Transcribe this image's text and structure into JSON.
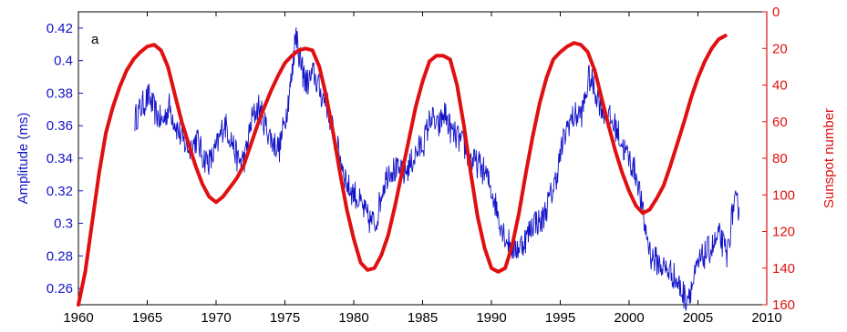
{
  "chart_data": {
    "type": "line",
    "panel_label": "a",
    "xlabel": "",
    "x_ticks": [
      1960,
      1965,
      1970,
      1975,
      1980,
      1985,
      1990,
      1995,
      2000,
      2005,
      2010
    ],
    "xlim": [
      1960,
      2010
    ],
    "left_axis": {
      "label": "Amplitude (ms)",
      "color": "#1414c8",
      "ylim": [
        0.25,
        0.43
      ],
      "ticks": [
        0.26,
        0.28,
        0.3,
        0.32,
        0.34,
        0.36,
        0.38,
        0.4,
        0.42
      ],
      "tick_labels": [
        "0.26",
        "0.28",
        "0.3",
        "0.32",
        "0.34",
        "0.36",
        "0.38",
        "0.4",
        "0.42"
      ]
    },
    "right_axis": {
      "label": "Sunspot number",
      "color": "#e01010",
      "ylim": [
        0,
        160
      ],
      "inverted": true,
      "ticks": [
        0,
        20,
        40,
        60,
        80,
        100,
        120,
        140,
        160
      ],
      "tick_labels": [
        "0",
        "20",
        "40",
        "60",
        "80",
        "100",
        "120",
        "140",
        "160"
      ]
    },
    "grid": false,
    "series": [
      {
        "axis": "left",
        "color": "#1414c8",
        "noisy": true,
        "x": [
          1964.1,
          1964.6,
          1965.1,
          1965.6,
          1966.1,
          1966.6,
          1967.1,
          1967.6,
          1968.1,
          1968.6,
          1969.1,
          1969.6,
          1970.1,
          1970.6,
          1971.1,
          1971.6,
          1972.1,
          1972.6,
          1973.1,
          1973.6,
          1974.1,
          1974.6,
          1975.1,
          1975.5,
          1975.8,
          1976.0,
          1976.3,
          1976.6,
          1977.1,
          1977.6,
          1978.1,
          1978.6,
          1979.1,
          1979.6,
          1980.1,
          1980.6,
          1981.1,
          1981.6,
          1982.1,
          1982.6,
          1983.1,
          1983.6,
          1984.1,
          1984.6,
          1985.1,
          1985.6,
          1986.1,
          1986.6,
          1987.1,
          1987.6,
          1988.1,
          1988.6,
          1989.1,
          1989.6,
          1990.1,
          1990.6,
          1991.1,
          1991.6,
          1992.1,
          1992.6,
          1993.1,
          1993.6,
          1994.1,
          1994.6,
          1995.1,
          1995.6,
          1996.1,
          1996.6,
          1997.1,
          1997.6,
          1998.1,
          1998.6,
          1999.1,
          1999.6,
          2000.1,
          2000.6,
          2001.1,
          2001.6,
          2002.1,
          2002.6,
          2003.1,
          2003.6,
          2004.1,
          2004.6,
          2005.1,
          2005.6,
          2006.1,
          2006.6,
          2007.1,
          2007.6,
          2008.0
        ],
        "y": [
          0.364,
          0.372,
          0.378,
          0.368,
          0.362,
          0.372,
          0.36,
          0.35,
          0.346,
          0.352,
          0.34,
          0.338,
          0.348,
          0.362,
          0.352,
          0.338,
          0.34,
          0.364,
          0.372,
          0.36,
          0.35,
          0.346,
          0.368,
          0.39,
          0.42,
          0.405,
          0.392,
          0.386,
          0.392,
          0.38,
          0.372,
          0.352,
          0.338,
          0.322,
          0.318,
          0.31,
          0.302,
          0.3,
          0.322,
          0.334,
          0.332,
          0.33,
          0.336,
          0.344,
          0.35,
          0.366,
          0.358,
          0.368,
          0.356,
          0.352,
          0.346,
          0.338,
          0.336,
          0.33,
          0.318,
          0.302,
          0.29,
          0.284,
          0.286,
          0.292,
          0.302,
          0.3,
          0.312,
          0.324,
          0.346,
          0.362,
          0.366,
          0.368,
          0.39,
          0.38,
          0.37,
          0.364,
          0.358,
          0.346,
          0.338,
          0.328,
          0.3,
          0.28,
          0.276,
          0.272,
          0.27,
          0.262,
          0.254,
          0.262,
          0.276,
          0.282,
          0.286,
          0.292,
          0.28,
          0.312,
          0.31
        ]
      },
      {
        "axis": "right",
        "color": "#e01010",
        "x": [
          1960.0,
          1960.5,
          1961.0,
          1961.5,
          1962.0,
          1962.5,
          1963.0,
          1963.5,
          1964.0,
          1964.5,
          1965.0,
          1965.5,
          1966.0,
          1966.5,
          1967.0,
          1967.5,
          1968.0,
          1968.5,
          1969.0,
          1969.5,
          1970.0,
          1970.5,
          1971.0,
          1971.5,
          1972.0,
          1972.5,
          1973.0,
          1973.5,
          1974.0,
          1974.5,
          1975.0,
          1975.5,
          1976.0,
          1976.5,
          1977.0,
          1977.5,
          1978.0,
          1978.5,
          1979.0,
          1979.5,
          1980.0,
          1980.5,
          1981.0,
          1981.5,
          1982.0,
          1982.5,
          1983.0,
          1983.5,
          1984.0,
          1984.5,
          1985.0,
          1985.5,
          1986.0,
          1986.5,
          1987.0,
          1987.5,
          1988.0,
          1988.5,
          1989.0,
          1989.5,
          1990.0,
          1990.5,
          1991.0,
          1991.5,
          1992.0,
          1992.5,
          1993.0,
          1993.5,
          1994.0,
          1994.5,
          1995.0,
          1995.5,
          1996.0,
          1996.5,
          1997.0,
          1997.5,
          1998.0,
          1998.5,
          1999.0,
          1999.5,
          2000.0,
          2000.5,
          2001.0,
          2001.5,
          2002.0,
          2002.5,
          2003.0,
          2003.5,
          2004.0,
          2004.5,
          2005.0,
          2005.5,
          2006.0,
          2006.5,
          2007.0
        ],
        "y": [
          160,
          142,
          115,
          88,
          66,
          52,
          41,
          32,
          26,
          22,
          19,
          18,
          21,
          30,
          45,
          60,
          72,
          84,
          94,
          101,
          104,
          101,
          96,
          91,
          84,
          73,
          62,
          52,
          43,
          35,
          28,
          24,
          21,
          20,
          21,
          30,
          46,
          66,
          88,
          108,
          124,
          137,
          141,
          140,
          133,
          122,
          106,
          88,
          70,
          52,
          38,
          27,
          24,
          24,
          26,
          40,
          62,
          88,
          112,
          129,
          140,
          142,
          140,
          128,
          110,
          88,
          68,
          50,
          36,
          26,
          22,
          19,
          17,
          18,
          22,
          32,
          47,
          62,
          76,
          88,
          98,
          106,
          110,
          108,
          102,
          95,
          84,
          72,
          60,
          47,
          36,
          27,
          20,
          15,
          13
        ]
      }
    ]
  }
}
